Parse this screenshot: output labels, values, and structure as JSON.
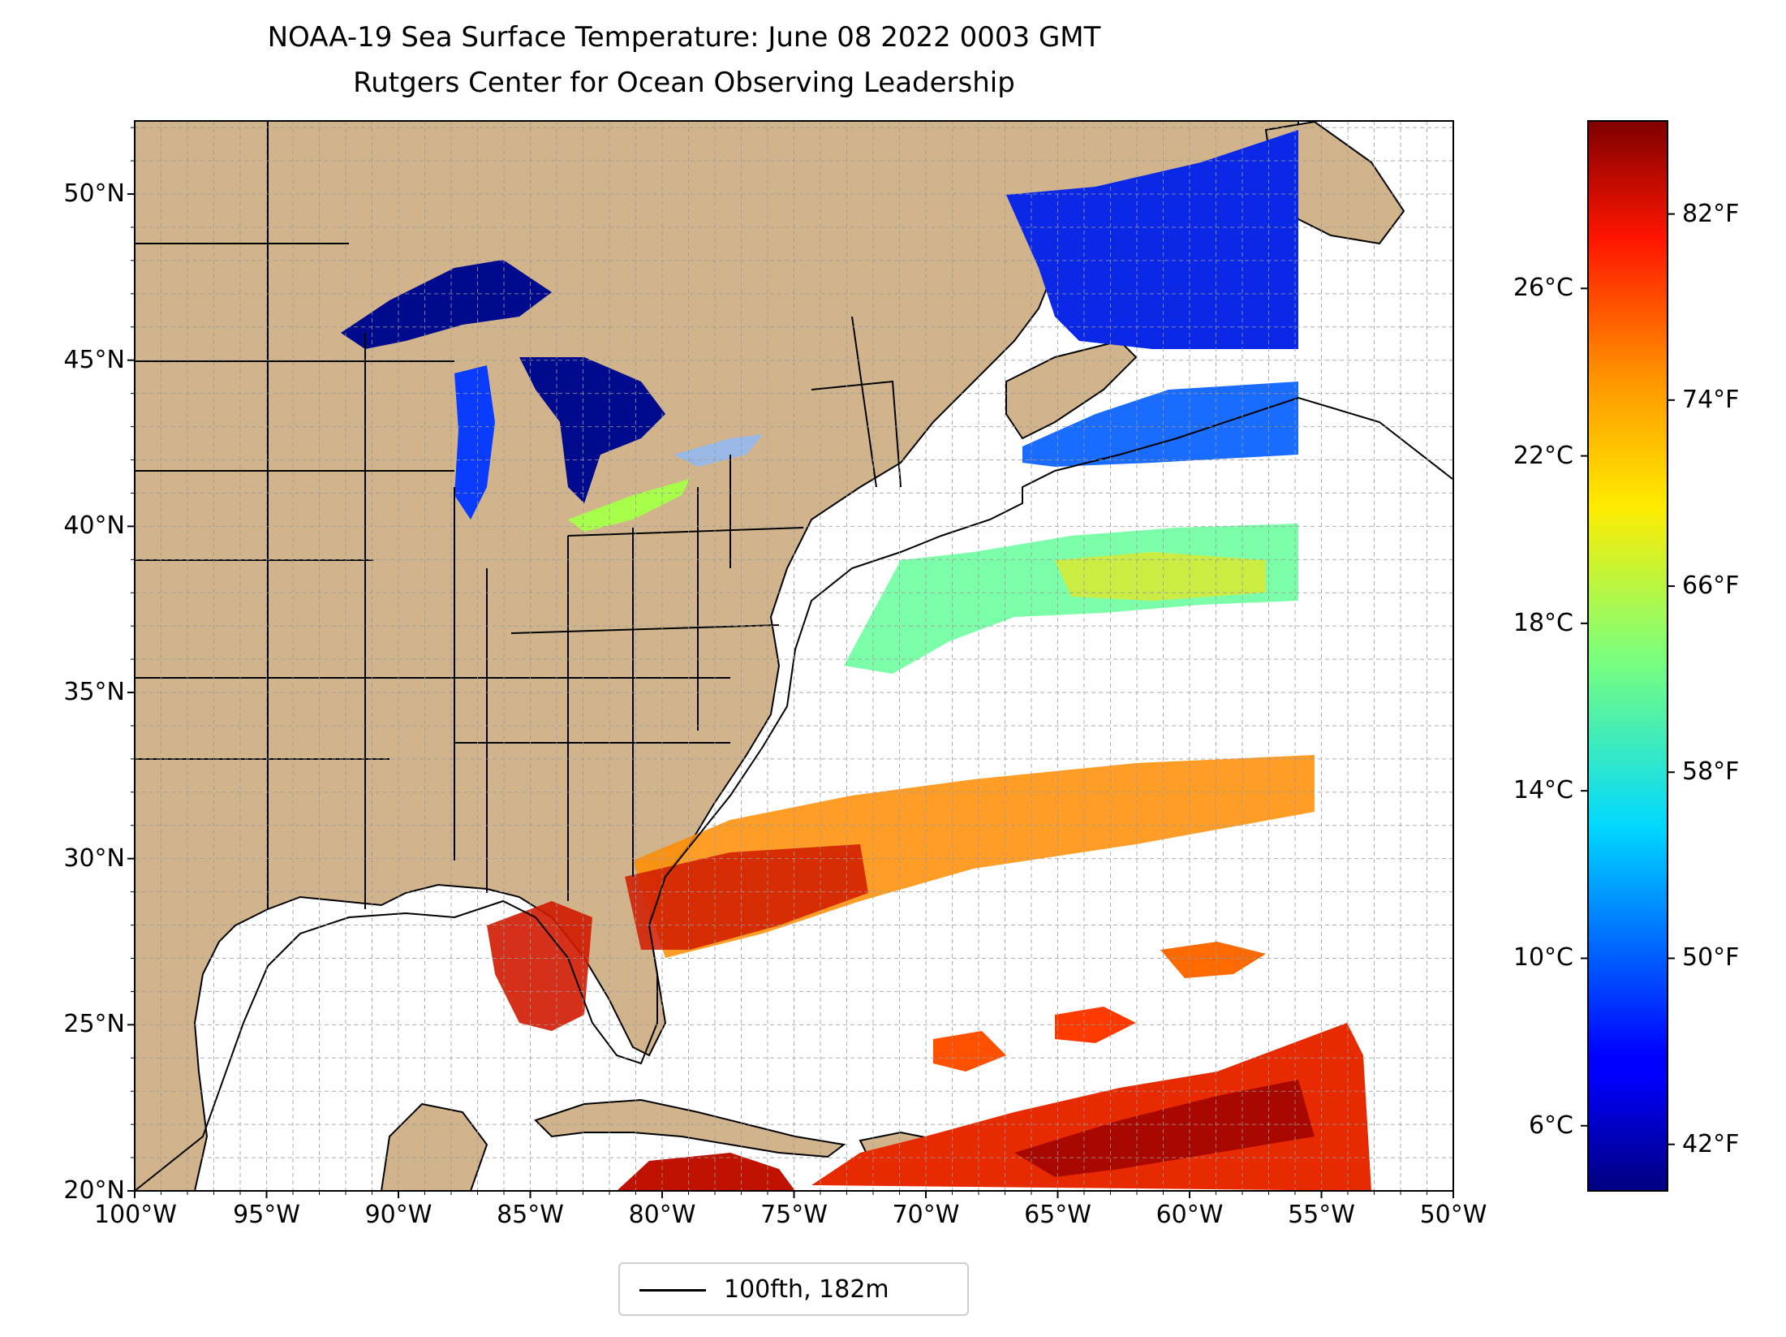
{
  "title": {
    "line1": "NOAA-19 Sea Surface Temperature: June 08 2022 0003 GMT",
    "line2": "Rutgers Center for Ocean Observing Leadership"
  },
  "map": {
    "lon_ticks": [
      "100°W",
      "95°W",
      "90°W",
      "85°W",
      "80°W",
      "75°W",
      "70°W",
      "65°W",
      "60°W",
      "55°W",
      "50°W"
    ],
    "lat_ticks": [
      "20°N",
      "25°N",
      "30°N",
      "35°N",
      "40°N",
      "45°N",
      "50°N"
    ],
    "lon_range": [
      -100,
      -50
    ],
    "lat_range": [
      20,
      52.2
    ],
    "land_color": "#d2b48c",
    "lake_color": "#9ab8e6",
    "grid": "dashed"
  },
  "legend": {
    "label": "100fth, 182m"
  },
  "colorbar": {
    "colormap": "jet",
    "celsius_ticks": [
      "6°C",
      "10°C",
      "14°C",
      "18°C",
      "22°C",
      "26°C"
    ],
    "fahrenheit_ticks": [
      "42°F",
      "50°F",
      "58°F",
      "66°F",
      "74°F",
      "82°F"
    ],
    "range_f": [
      40,
      86
    ]
  }
}
